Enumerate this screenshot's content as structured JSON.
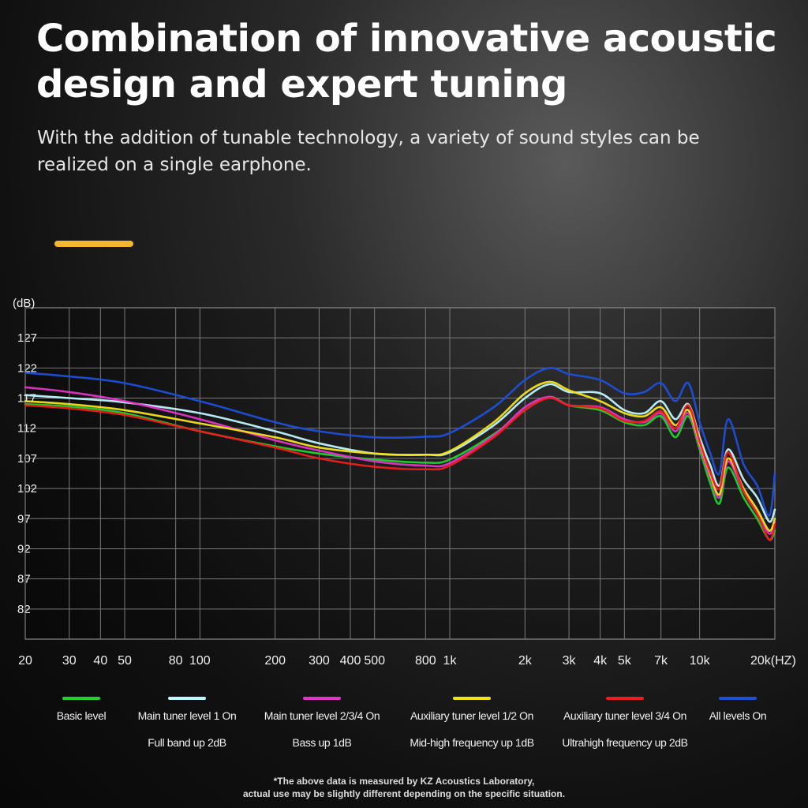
{
  "header": {
    "title": "Combination of innovative acoustic design and expert tuning",
    "subtitle": "With the addition of tunable technology, a variety of sound styles can be realized on a single earphone.",
    "accent_color": "#f2b630"
  },
  "chart_data": {
    "type": "line",
    "title": "",
    "ylabel": "(dB)",
    "xlabel": "20k(HZ)",
    "x_scale": "log",
    "xlim": [
      20,
      20000
    ],
    "ylim": [
      77,
      132
    ],
    "grid": true,
    "legend_position": "bottom",
    "y_ticks": [
      127,
      122,
      117,
      112,
      107,
      102,
      97,
      92,
      87,
      82
    ],
    "x_ticks": [
      {
        "v": 20,
        "label": "20"
      },
      {
        "v": 30,
        "label": "30"
      },
      {
        "v": 40,
        "label": "40"
      },
      {
        "v": 50,
        "label": "50"
      },
      {
        "v": 80,
        "label": "80"
      },
      {
        "v": 100,
        "label": "100"
      },
      {
        "v": 200,
        "label": "200"
      },
      {
        "v": 300,
        "label": "300"
      },
      {
        "v": 400,
        "label": "400"
      },
      {
        "v": 500,
        "label": "500"
      },
      {
        "v": 800,
        "label": "800"
      },
      {
        "v": 1000,
        "label": "1k"
      },
      {
        "v": 2000,
        "label": "2k"
      },
      {
        "v": 3000,
        "label": "3k"
      },
      {
        "v": 4000,
        "label": "4k"
      },
      {
        "v": 5000,
        "label": "5k"
      },
      {
        "v": 7000,
        "label": "7k"
      },
      {
        "v": 10000,
        "label": "10k"
      },
      {
        "v": 20000,
        "label": "20k(HZ)"
      }
    ],
    "x": [
      20,
      30,
      50,
      100,
      200,
      300,
      500,
      800,
      1000,
      1500,
      2000,
      2500,
      3000,
      4000,
      5000,
      6000,
      7000,
      8000,
      9000,
      10000,
      11000,
      12000,
      13000,
      15000,
      17000,
      19000,
      20000
    ],
    "series": [
      {
        "name": "Basic level",
        "color": "#22d12e",
        "values": [
          116.0,
          115.6,
          114.5,
          111.5,
          109.0,
          107.8,
          106.8,
          106.3,
          106.8,
          111.0,
          115.0,
          117.2,
          115.8,
          115.0,
          113.0,
          112.5,
          114.0,
          110.5,
          114.0,
          108.5,
          103.0,
          99.5,
          105.5,
          100.5,
          97.0,
          93.5,
          95.0
        ]
      },
      {
        "name": "Main tuner level 1 On",
        "color": "#bff5ff",
        "values": [
          117.5,
          117.0,
          116.3,
          114.5,
          111.5,
          109.5,
          107.8,
          107.6,
          108.0,
          112.5,
          117.0,
          119.3,
          118.0,
          117.8,
          115.0,
          114.5,
          116.5,
          113.5,
          116.0,
          110.5,
          106.0,
          102.5,
          108.5,
          103.5,
          100.5,
          96.5,
          98.5
        ]
      },
      {
        "name": "Main tuner level 2/3/4 On",
        "color": "#e334c8",
        "values": [
          118.8,
          118.0,
          116.5,
          113.5,
          110.0,
          108.3,
          106.5,
          105.8,
          106.2,
          110.8,
          115.5,
          117.2,
          115.8,
          115.5,
          113.5,
          113.0,
          114.5,
          111.5,
          114.5,
          109.0,
          104.0,
          100.5,
          106.5,
          101.5,
          98.0,
          94.5,
          96.5
        ]
      },
      {
        "name": "Auxiliary tuner level 1/2 On",
        "color": "#f3e21a",
        "values": [
          116.5,
          116.0,
          115.0,
          112.8,
          110.5,
          108.8,
          107.8,
          107.6,
          108.2,
          113.0,
          117.8,
          119.7,
          118.3,
          116.5,
          114.5,
          114.0,
          115.5,
          112.5,
          115.0,
          109.5,
          104.5,
          101.0,
          107.0,
          102.0,
          98.5,
          95.0,
          97.0
        ]
      },
      {
        "name": "Auxiliary tuner level 3/4 On",
        "color": "#ee1c1c",
        "values": [
          115.8,
          115.3,
          114.2,
          111.5,
          108.8,
          107.0,
          105.6,
          105.2,
          105.8,
          110.5,
          115.0,
          117.0,
          115.8,
          115.3,
          113.2,
          113.2,
          114.8,
          112.0,
          115.8,
          109.8,
          104.8,
          102.0,
          108.0,
          101.5,
          97.8,
          93.5,
          96.0
        ]
      },
      {
        "name": "All levels On",
        "color": "#1d4fd8",
        "values": [
          121.2,
          120.6,
          119.5,
          116.5,
          113.0,
          111.5,
          110.5,
          110.6,
          111.2,
          115.5,
          120.0,
          122.0,
          121.0,
          120.0,
          117.8,
          118.0,
          119.5,
          116.5,
          119.5,
          113.0,
          108.0,
          104.5,
          113.5,
          106.0,
          102.5,
          97.5,
          104.5
        ]
      }
    ]
  },
  "legend": [
    {
      "name": "Basic level",
      "sub": "",
      "color": "#22d12e"
    },
    {
      "name": "Main tuner level 1 On",
      "sub": "Full band up 2dB",
      "color": "#bff5ff"
    },
    {
      "name": "Main tuner level 2/3/4 On",
      "sub": "Bass up 1dB",
      "color": "#e334c8"
    },
    {
      "name": "Auxiliary tuner level 1/2 On",
      "sub": "Mid-high frequency up 1dB",
      "color": "#f3e21a"
    },
    {
      "name": "Auxiliary tuner level 3/4 On",
      "sub": "Ultrahigh frequency up 2dB",
      "color": "#ee1c1c"
    },
    {
      "name": "All levels On",
      "sub": "",
      "color": "#1d4fd8"
    }
  ],
  "footnote": {
    "line1": "*The above data is measured by KZ Acoustics Laboratory,",
    "line2": "actual use may be slightly different depending on the specific situation."
  }
}
